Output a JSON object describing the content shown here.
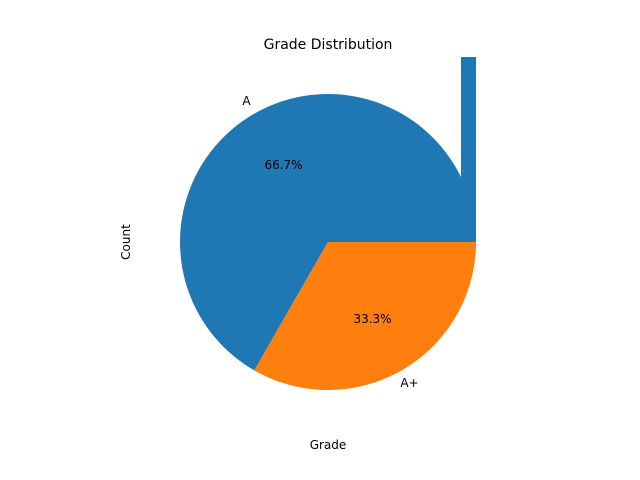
{
  "chart_data": {
    "type": "pie",
    "title": "Grade Distribution",
    "xlabel": "Grade",
    "ylabel": "Count",
    "categories": [
      "A",
      "A+"
    ],
    "values": [
      66.7,
      33.3
    ],
    "percent_labels": [
      "66.7%",
      "33.3%"
    ],
    "colors": [
      "#1f77b4",
      "#ff7f0e"
    ],
    "legend": "none",
    "grid": false
  }
}
